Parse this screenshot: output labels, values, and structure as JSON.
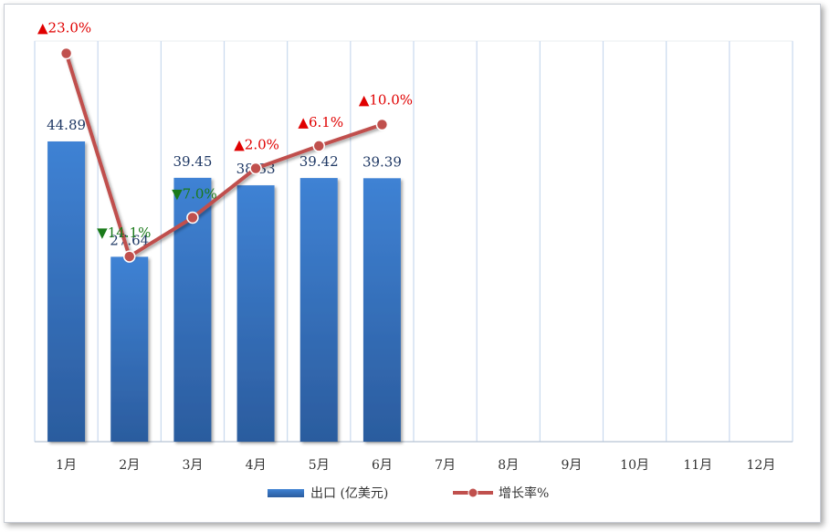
{
  "chart_data": {
    "type": "bar",
    "categories": [
      "1月",
      "2月",
      "3月",
      "4月",
      "5月",
      "6月",
      "7月",
      "8月",
      "9月",
      "10月",
      "11月",
      "12月"
    ],
    "series": [
      {
        "name": "出口 (亿美元)",
        "type": "bar",
        "values": [
          44.89,
          27.64,
          39.45,
          38.33,
          39.42,
          39.39,
          null,
          null,
          null,
          null,
          null,
          null
        ],
        "color": "#3a78c8"
      },
      {
        "name": "增长率%",
        "type": "line",
        "values": [
          23.0,
          -14.1,
          -7.0,
          2.0,
          6.1,
          10.0,
          null,
          null,
          null,
          null,
          null,
          null
        ],
        "labels": [
          "▲23.0%",
          "▼14.1%",
          "▼7.0%",
          "▲2.0%",
          "▲6.1%",
          "▲10.0%"
        ],
        "color": "#c0504d"
      }
    ],
    "legend_position": "bottom",
    "grid": "vertical",
    "colors": {
      "up": "#e00000",
      "down": "#1a7a1a",
      "value_label": "#1f3864"
    }
  }
}
